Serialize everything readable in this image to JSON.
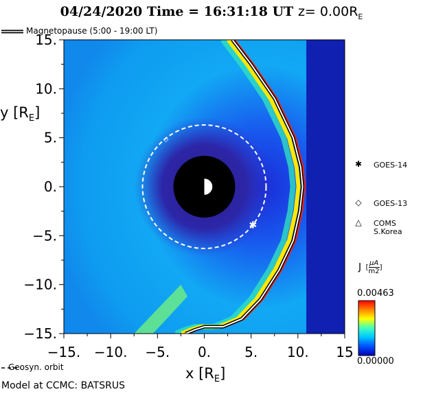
{
  "title": {
    "date": "04/24/2020",
    "time_label": "Time =",
    "time": "16:31:18",
    "time_unit": "UT",
    "z_label": "z= 0.00R",
    "z_sub": "E"
  },
  "legend": {
    "magnetopause": "Magnetopause (5:00 - 19:00 LT)",
    "geosync": "Geosyn. orbit"
  },
  "credit": "Model at CCMC: BATSRUS",
  "satellites": [
    {
      "name": "GOES-14",
      "marker": "✱",
      "x": 5.2,
      "y": -3.9
    },
    {
      "name": "GOES-13",
      "marker": "◇",
      "x": -4.1,
      "y": 4.9
    },
    {
      "name": "COMS S.Korea",
      "name_line1": "COMS",
      "name_line2": "S.Korea",
      "marker": "△"
    }
  ],
  "colorbar": {
    "label": "J",
    "unit_num": "μA",
    "unit_den": "m2",
    "max": "0.00463",
    "min": "0.00000",
    "colors": [
      "#0000b4",
      "#0050ff",
      "#00c8ff",
      "#40ffc0",
      "#ffff00",
      "#ff8000",
      "#ff0000"
    ]
  },
  "chart_data": {
    "type": "heatmap",
    "title": "04/24/2020 Time = 16:31:18 UT z= 0.00RE",
    "xlabel": "x [RE]",
    "ylabel": "y [RE]",
    "xlim": [
      -15,
      15
    ],
    "ylim": [
      -15,
      15
    ],
    "x_ticks": [
      "-15.",
      "-10.",
      "-5.",
      "0.",
      "5.",
      "10.",
      "15"
    ],
    "y_ticks": [
      "15.",
      "10.",
      "5.",
      "0.",
      "-5.",
      "-10.",
      "-15."
    ],
    "x_tick_values": [
      -15,
      -10,
      -5,
      0,
      5,
      10,
      15
    ],
    "y_tick_values": [
      15,
      10,
      5,
      0,
      -5,
      -10,
      -15
    ],
    "value_range": [
      0.0,
      0.00463
    ],
    "earth_radius": 3.3,
    "geosync_orbit_radius": 6.6,
    "magnetopause": [
      [
        3.0,
        15.0
      ],
      [
        5.0,
        12.5
      ],
      [
        7.5,
        9.0
      ],
      [
        9.5,
        5.0
      ],
      [
        10.3,
        2.0
      ],
      [
        10.5,
        0.0
      ],
      [
        10.2,
        -2.5
      ],
      [
        9.5,
        -5.5
      ],
      [
        8.0,
        -8.5
      ],
      [
        6.0,
        -11.5
      ],
      [
        4.0,
        -13.5
      ],
      [
        2.0,
        -14.3
      ],
      [
        0.0,
        -14.3
      ],
      [
        -1.0,
        -14.6
      ],
      [
        -2.0,
        -15.0
      ]
    ]
  }
}
